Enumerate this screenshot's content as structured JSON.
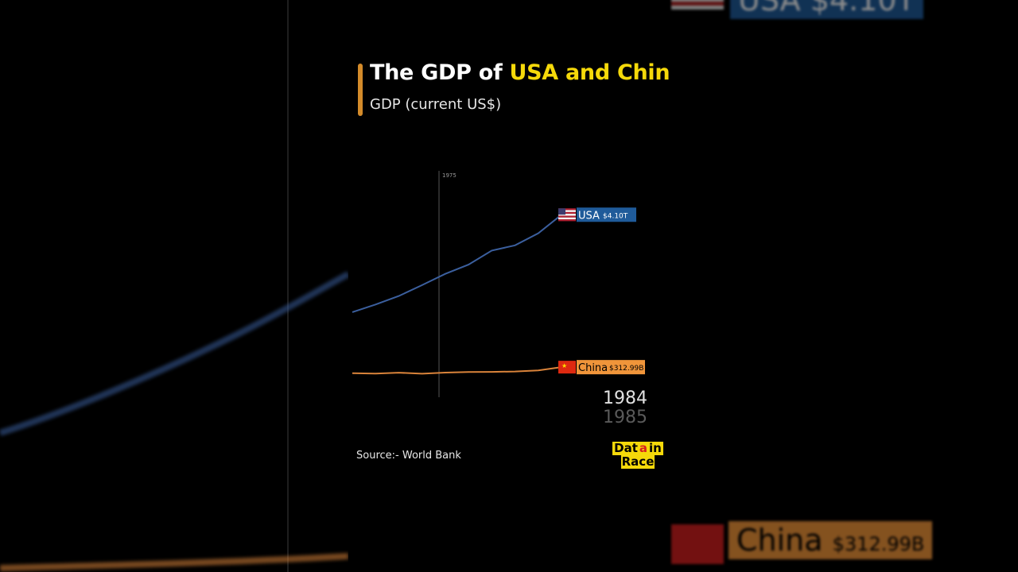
{
  "header": {
    "title_prefix": "The GDP of ",
    "title_highlight": "USA and China",
    "subtitle": "GDP (current US$)"
  },
  "colors": {
    "accent_bar": "#d48b2a",
    "highlight_text": "#f5d90a",
    "usa_line": "#3b5f9e",
    "usa_badge": "#1f5b9a",
    "china_line": "#d9833a",
    "china_badge": "#f0953a"
  },
  "chart_data": {
    "type": "line",
    "x": [
      1975,
      1976,
      1977,
      1978,
      1979,
      1980,
      1981,
      1982,
      1983,
      1984
    ],
    "marker_year_label": "1975",
    "series": [
      {
        "name": "USA",
        "value_label": "$4.10T",
        "icon": "us-flag-icon",
        "values": [
          1.68,
          1.87,
          2.08,
          2.35,
          2.63,
          2.86,
          3.21,
          3.34,
          3.64,
          4.1
        ]
      },
      {
        "name": "China",
        "value_label": "$312.99B",
        "icon": "china-flag-icon",
        "values": [
          0.163,
          0.154,
          0.175,
          0.15,
          0.178,
          0.191,
          0.196,
          0.205,
          0.23,
          0.313
        ]
      }
    ],
    "ylim": [
      0,
      4.5
    ],
    "grid": false,
    "legend": "end-of-line labels"
  },
  "timeline": {
    "current_year": "1984",
    "next_year": "1985"
  },
  "footer": {
    "source": "Source:-  World Bank"
  },
  "logo": {
    "line1_a": "Dat",
    "line1_b": "a",
    "line1_c": " in",
    "line2": "Race"
  },
  "background_echo": {
    "usa_label": "USA $4.10T",
    "china_name": "China",
    "china_value": "$312.99B"
  }
}
